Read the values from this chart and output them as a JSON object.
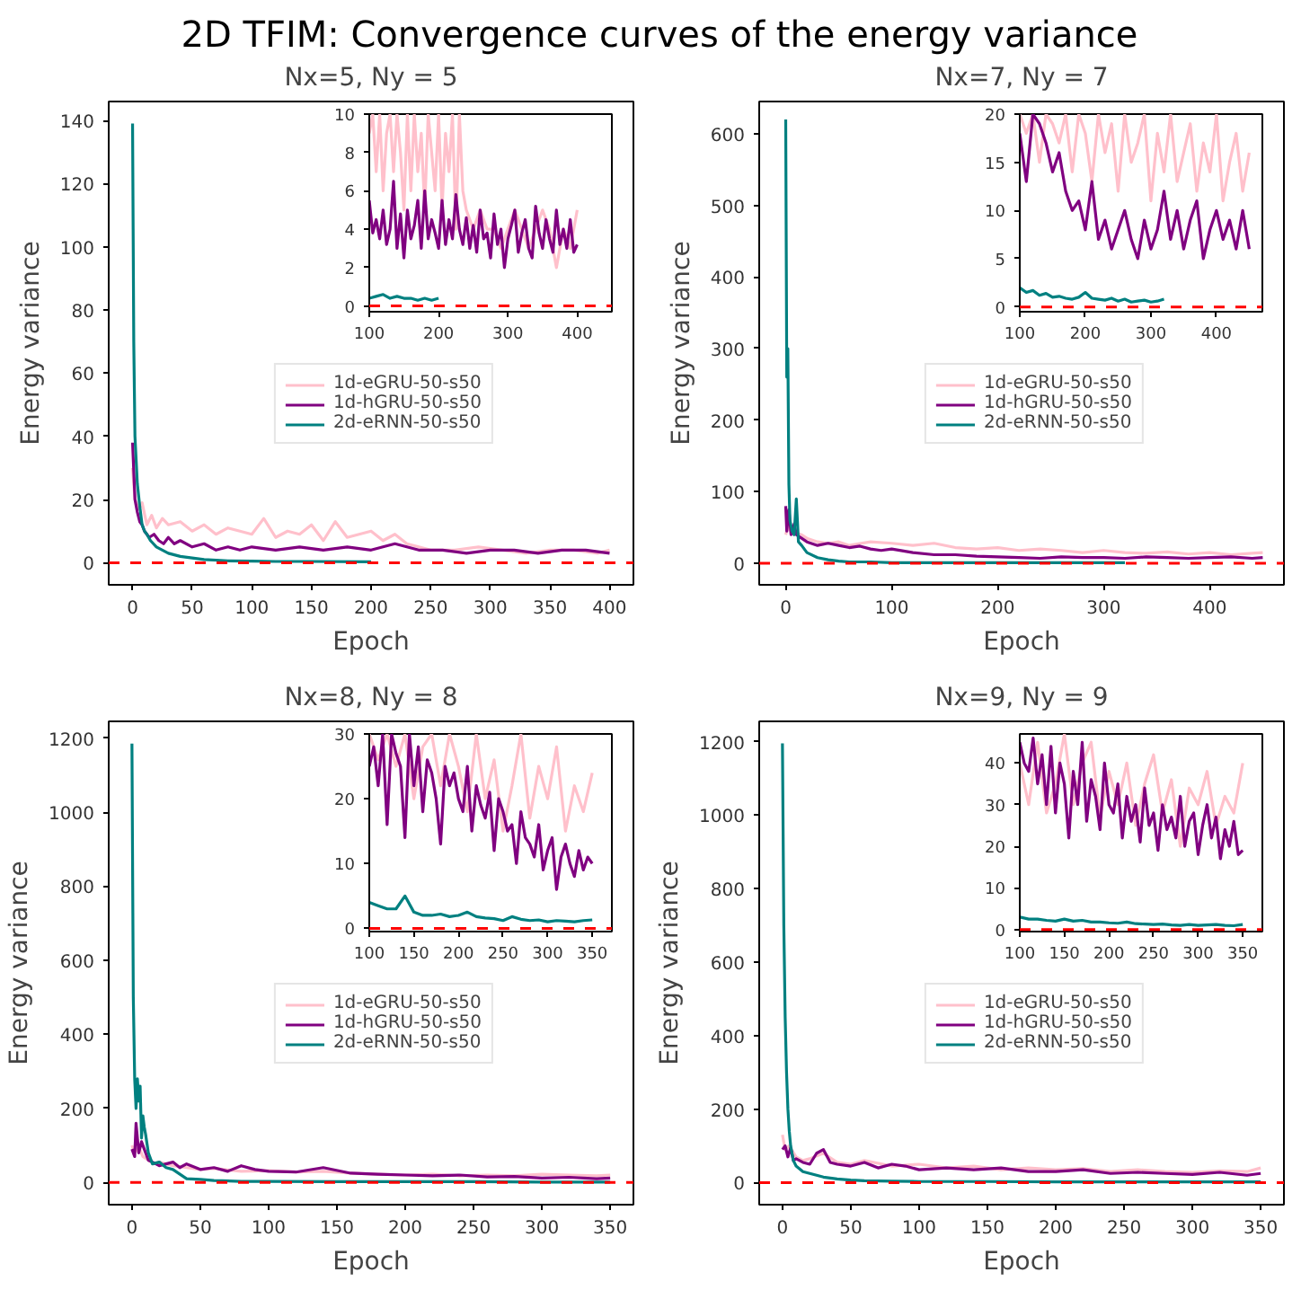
{
  "chart_data": [
    {
      "type": "line",
      "title": "2D TFIM: Convergence curves of the energy variance",
      "subtitle": "Nx=5, Ny = 5",
      "xlabel": "Epoch",
      "ylabel": "Energy variance",
      "xlim": [
        -20,
        420
      ],
      "ylim": [
        -7,
        146
      ],
      "xticks": [
        0,
        50,
        100,
        150,
        200,
        250,
        300,
        350,
        400
      ],
      "yticks": [
        0,
        20,
        40,
        60,
        80,
        100,
        120,
        140
      ],
      "legend": "right",
      "ref_lines": [
        {
          "axis": "y",
          "value": 0,
          "color": "#ff0000",
          "line_style": "dashed"
        }
      ],
      "series": [
        {
          "name": "1d-eGRU-50-s50",
          "color": "#ffc0cb",
          "x": [
            0,
            2,
            5,
            8,
            12,
            16,
            20,
            25,
            30,
            40,
            50,
            60,
            70,
            80,
            90,
            100,
            110,
            120,
            130,
            140,
            150,
            160,
            170,
            180,
            190,
            200,
            210,
            220,
            230,
            240,
            250,
            270,
            290,
            310,
            330,
            350,
            370,
            390,
            400
          ],
          "values": [
            30,
            20,
            17,
            19,
            12,
            15,
            11,
            14,
            12,
            13,
            10,
            12,
            9,
            11,
            10,
            9,
            14,
            8,
            10,
            9,
            12,
            7,
            13,
            8,
            9,
            10,
            7,
            9,
            6,
            5,
            4,
            4,
            5,
            4,
            3,
            4,
            4,
            3,
            4
          ]
        },
        {
          "name": "1d-hGRU-50-s50",
          "color": "#800080",
          "x": [
            0,
            2,
            4,
            6,
            8,
            10,
            14,
            18,
            22,
            26,
            30,
            35,
            40,
            50,
            60,
            70,
            80,
            90,
            100,
            120,
            140,
            160,
            180,
            200,
            220,
            240,
            260,
            280,
            300,
            320,
            340,
            360,
            380,
            400
          ],
          "values": [
            38,
            20,
            16,
            13,
            12,
            10,
            8,
            9,
            7,
            6,
            8,
            6,
            7,
            5,
            6,
            4,
            5,
            4,
            5,
            4,
            5,
            4,
            5,
            4,
            6,
            4,
            4,
            3,
            4,
            4,
            3,
            4,
            4,
            3
          ]
        },
        {
          "name": "2d-eRNN-50-s50",
          "color": "#008080",
          "x": [
            0,
            1,
            2,
            4,
            6,
            8,
            10,
            12,
            15,
            20,
            25,
            30,
            40,
            50,
            60,
            80,
            100,
            120,
            150,
            200
          ],
          "values": [
            139,
            70,
            40,
            25,
            18,
            12,
            10,
            9,
            7,
            5,
            4,
            3,
            2,
            1.5,
            1,
            0.6,
            0.5,
            0.4,
            0.4,
            0.3
          ]
        }
      ]
    },
    {
      "type": "line",
      "xlim": [
        100,
        450
      ],
      "ylim": [
        -0.3,
        10
      ],
      "xticks": [
        100,
        200,
        300,
        400
      ],
      "yticks": [
        0,
        2,
        4,
        6,
        8,
        10
      ],
      "ref_lines": [
        {
          "axis": "y",
          "value": 0,
          "color": "#ff0000",
          "line_style": "dashed"
        }
      ],
      "series": [
        {
          "color": "#ffc0cb",
          "x": [
            100,
            105,
            110,
            115,
            120,
            125,
            130,
            135,
            140,
            145,
            150,
            155,
            160,
            165,
            170,
            175,
            180,
            185,
            190,
            195,
            200,
            205,
            210,
            215,
            220,
            225,
            230,
            235,
            240,
            250,
            260,
            270,
            280,
            290,
            300,
            310,
            320,
            330,
            340,
            350,
            360,
            370,
            380,
            390,
            400
          ],
          "values": [
            9,
            10,
            7,
            10,
            6,
            9,
            10,
            7,
            10,
            8,
            5,
            10,
            6,
            10,
            7,
            9,
            5,
            10,
            8,
            6,
            10,
            5,
            9,
            7,
            10,
            4,
            10,
            6,
            5,
            4,
            5,
            4,
            4,
            3,
            4,
            5,
            4,
            3,
            4,
            5,
            4,
            2,
            4,
            3,
            5
          ]
        },
        {
          "color": "#800080",
          "x": [
            100,
            105,
            110,
            115,
            120,
            125,
            130,
            135,
            140,
            145,
            150,
            155,
            160,
            165,
            170,
            175,
            180,
            185,
            190,
            195,
            200,
            205,
            210,
            215,
            220,
            225,
            230,
            235,
            240,
            245,
            250,
            255,
            260,
            265,
            270,
            275,
            280,
            285,
            290,
            295,
            300,
            305,
            310,
            315,
            320,
            325,
            330,
            335,
            340,
            345,
            350,
            355,
            360,
            365,
            370,
            375,
            380,
            385,
            390,
            395,
            400
          ],
          "values": [
            5.5,
            3.8,
            4.5,
            3.5,
            5,
            3.2,
            4,
            6.5,
            3,
            4.8,
            2.5,
            5,
            3.5,
            4.2,
            5.5,
            3,
            6,
            3.5,
            4.5,
            3.8,
            3,
            5.5,
            3.2,
            4.5,
            3.5,
            5.8,
            4,
            3.2,
            4.6,
            3,
            4.2,
            2.8,
            5,
            3.5,
            3.8,
            2.5,
            4.8,
            3.2,
            4,
            2,
            3.5,
            4.2,
            5,
            2.8,
            3.8,
            4.5,
            3,
            2.5,
            5.2,
            3.8,
            3,
            4.5,
            3.5,
            2.8,
            5,
            3.2,
            4,
            3,
            4.5,
            2.8,
            3.2
          ]
        },
        {
          "color": "#008080",
          "x": [
            100,
            110,
            120,
            130,
            140,
            150,
            160,
            170,
            180,
            190,
            200
          ],
          "values": [
            0.4,
            0.5,
            0.6,
            0.4,
            0.5,
            0.4,
            0.4,
            0.3,
            0.4,
            0.3,
            0.4
          ]
        }
      ]
    },
    {
      "type": "line",
      "title": "Nx=7, Ny = 7",
      "xlabel": "Epoch",
      "ylabel": "Energy variance",
      "xlim": [
        -25,
        470
      ],
      "ylim": [
        -30,
        645
      ],
      "xticks": [
        0,
        100,
        200,
        300,
        400
      ],
      "yticks": [
        0,
        100,
        200,
        300,
        400,
        500,
        600
      ],
      "legend": "right",
      "ref_lines": [
        {
          "axis": "y",
          "value": 0,
          "color": "#ff0000",
          "line_style": "dashed"
        }
      ],
      "series": [
        {
          "name": "1d-eGRU-50-s50",
          "color": "#ffc0cb",
          "x": [
            0,
            2,
            5,
            10,
            15,
            20,
            30,
            40,
            50,
            60,
            80,
            100,
            120,
            140,
            160,
            180,
            200,
            220,
            240,
            260,
            280,
            300,
            320,
            340,
            360,
            380,
            400,
            420,
            440,
            450
          ],
          "values": [
            40,
            50,
            45,
            42,
            40,
            35,
            30,
            28,
            30,
            25,
            30,
            28,
            25,
            28,
            22,
            20,
            22,
            18,
            20,
            18,
            15,
            18,
            15,
            14,
            16,
            13,
            15,
            12,
            14,
            15
          ]
        },
        {
          "name": "1d-hGRU-50-s50",
          "color": "#800080",
          "x": [
            0,
            1,
            3,
            5,
            8,
            10,
            15,
            20,
            30,
            40,
            50,
            60,
            70,
            80,
            90,
            100,
            120,
            140,
            160,
            180,
            200,
            220,
            240,
            260,
            280,
            300,
            320,
            340,
            360,
            380,
            400,
            420,
            440,
            450
          ],
          "values": [
            80,
            45,
            75,
            40,
            55,
            40,
            35,
            30,
            25,
            28,
            25,
            22,
            24,
            20,
            18,
            20,
            15,
            12,
            12,
            10,
            9,
            8,
            7,
            9,
            8,
            8,
            7,
            9,
            8,
            7,
            8,
            9,
            7,
            8
          ]
        },
        {
          "name": "2d-eRNN-50-s50",
          "color": "#008080",
          "x": [
            0,
            1,
            2,
            3,
            4,
            6,
            8,
            10,
            12,
            15,
            20,
            30,
            40,
            50,
            60,
            80,
            100,
            150,
            200,
            250,
            300,
            320
          ],
          "values": [
            620,
            260,
            300,
            110,
            60,
            45,
            40,
            90,
            30,
            25,
            15,
            8,
            5,
            3,
            2,
            2,
            1,
            1,
            1,
            1,
            1,
            1
          ]
        }
      ]
    },
    {
      "type": "line",
      "xlim": [
        100,
        470
      ],
      "ylim": [
        -0.5,
        20
      ],
      "xticks": [
        100,
        200,
        300,
        400
      ],
      "yticks": [
        0,
        5,
        10,
        15,
        20
      ],
      "ref_lines": [
        {
          "axis": "y",
          "value": 0,
          "color": "#ff0000",
          "line_style": "dashed"
        }
      ],
      "series": [
        {
          "color": "#ffc0cb",
          "x": [
            100,
            110,
            120,
            130,
            140,
            150,
            160,
            170,
            180,
            190,
            200,
            210,
            220,
            230,
            240,
            250,
            260,
            270,
            280,
            290,
            300,
            310,
            320,
            330,
            340,
            350,
            360,
            370,
            380,
            390,
            400,
            410,
            420,
            430,
            440,
            450
          ],
          "values": [
            20,
            18,
            20,
            15,
            20,
            19,
            17,
            20,
            14,
            20,
            18,
            13,
            20,
            16,
            19,
            12,
            20,
            15,
            17,
            20,
            11,
            18,
            14,
            20,
            13,
            16,
            19,
            12,
            17,
            14,
            20,
            11,
            15,
            18,
            12,
            16
          ]
        },
        {
          "color": "#800080",
          "x": [
            100,
            110,
            120,
            130,
            140,
            150,
            160,
            170,
            180,
            190,
            200,
            210,
            220,
            230,
            240,
            250,
            260,
            270,
            280,
            290,
            300,
            310,
            320,
            330,
            340,
            350,
            360,
            370,
            380,
            390,
            400,
            410,
            420,
            430,
            440,
            450
          ],
          "values": [
            18,
            13,
            20,
            19,
            17,
            14,
            16,
            12,
            10,
            11,
            8,
            13,
            7,
            9,
            6,
            8,
            10,
            7,
            5,
            9,
            6,
            8,
            12,
            7,
            10,
            6,
            9,
            11,
            5,
            8,
            10,
            7,
            9,
            6,
            10,
            6
          ]
        },
        {
          "color": "#008080",
          "x": [
            100,
            110,
            120,
            130,
            140,
            150,
            160,
            170,
            180,
            190,
            200,
            210,
            220,
            230,
            240,
            250,
            260,
            270,
            280,
            290,
            300,
            310,
            320
          ],
          "values": [
            2,
            1.5,
            1.7,
            1.2,
            1.4,
            1,
            1.1,
            0.9,
            0.8,
            1,
            1.5,
            0.9,
            0.8,
            0.7,
            0.9,
            0.6,
            0.8,
            0.5,
            0.6,
            0.7,
            0.5,
            0.6,
            0.8
          ]
        }
      ]
    },
    {
      "type": "line",
      "title": "Nx=8, Ny = 8",
      "xlabel": "Epoch",
      "ylabel": "Energy variance",
      "xlim": [
        -17,
        367
      ],
      "ylim": [
        -60,
        1245
      ],
      "xticks": [
        0,
        50,
        100,
        150,
        200,
        250,
        300,
        350
      ],
      "yticks": [
        0,
        200,
        400,
        600,
        800,
        1000,
        1200
      ],
      "legend": "right",
      "ref_lines": [
        {
          "axis": "y",
          "value": 0,
          "color": "#ff0000",
          "line_style": "dashed"
        }
      ],
      "series": [
        {
          "name": "1d-eGRU-50-s50",
          "color": "#ffc0cb",
          "x": [
            0,
            2,
            5,
            8,
            12,
            16,
            20,
            30,
            40,
            50,
            60,
            80,
            100,
            120,
            140,
            160,
            180,
            200,
            220,
            240,
            260,
            280,
            300,
            320,
            340,
            350
          ],
          "values": [
            100,
            80,
            95,
            70,
            60,
            50,
            55,
            45,
            40,
            35,
            38,
            30,
            32,
            28,
            30,
            25,
            22,
            20,
            22,
            18,
            20,
            18,
            22,
            20,
            18,
            20
          ]
        },
        {
          "name": "1d-hGRU-50-s50",
          "color": "#800080",
          "x": [
            0,
            2,
            3,
            5,
            7,
            9,
            12,
            15,
            20,
            25,
            30,
            35,
            40,
            50,
            60,
            70,
            80,
            90,
            100,
            120,
            140,
            160,
            180,
            200,
            220,
            240,
            260,
            280,
            300,
            320,
            340,
            350
          ],
          "values": [
            90,
            70,
            160,
            80,
            110,
            90,
            60,
            55,
            45,
            50,
            55,
            40,
            50,
            35,
            40,
            30,
            45,
            35,
            30,
            28,
            40,
            25,
            22,
            20,
            18,
            20,
            15,
            16,
            12,
            14,
            10,
            12
          ]
        },
        {
          "name": "2d-eRNN-50-s50",
          "color": "#008080",
          "x": [
            0,
            1,
            2,
            3,
            4,
            5,
            6,
            7,
            8,
            9,
            10,
            12,
            15,
            20,
            25,
            30,
            40,
            50,
            60,
            80,
            100,
            150,
            200,
            250,
            300,
            350
          ],
          "values": [
            1185,
            500,
            280,
            200,
            280,
            220,
            260,
            120,
            180,
            150,
            130,
            80,
            50,
            55,
            40,
            35,
            10,
            8,
            5,
            3,
            3,
            2,
            2,
            2,
            1,
            1
          ]
        }
      ]
    },
    {
      "type": "line",
      "xlim": [
        100,
        372
      ],
      "ylim": [
        -0.5,
        30
      ],
      "xticks": [
        100,
        150,
        200,
        250,
        300,
        350
      ],
      "yticks": [
        0,
        10,
        20,
        30
      ],
      "ref_lines": [
        {
          "axis": "y",
          "value": 0,
          "color": "#ff0000",
          "line_style": "dashed"
        }
      ],
      "series": [
        {
          "color": "#ffc0cb",
          "x": [
            100,
            110,
            120,
            130,
            140,
            150,
            160,
            170,
            180,
            190,
            200,
            210,
            220,
            230,
            240,
            250,
            260,
            270,
            280,
            290,
            300,
            310,
            320,
            330,
            340,
            350
          ],
          "values": [
            30,
            26,
            30,
            25,
            30,
            20,
            28,
            30,
            22,
            30,
            25,
            18,
            30,
            20,
            26,
            15,
            22,
            30,
            17,
            25,
            20,
            28,
            15,
            22,
            18,
            24
          ]
        },
        {
          "color": "#800080",
          "x": [
            100,
            105,
            110,
            115,
            120,
            125,
            130,
            135,
            140,
            145,
            150,
            155,
            160,
            165,
            170,
            175,
            180,
            185,
            190,
            195,
            200,
            205,
            210,
            215,
            220,
            225,
            230,
            235,
            240,
            245,
            250,
            255,
            260,
            265,
            270,
            275,
            280,
            285,
            290,
            295,
            300,
            305,
            310,
            315,
            320,
            325,
            330,
            335,
            340,
            345,
            350
          ],
          "values": [
            25,
            28,
            22,
            30,
            16,
            30,
            27,
            25,
            14,
            30,
            22,
            28,
            18,
            26,
            24,
            20,
            13,
            25,
            22,
            24,
            20,
            18,
            25,
            15,
            22,
            19,
            17,
            21,
            12,
            20,
            18,
            15,
            16,
            10,
            18,
            14,
            13,
            11,
            16,
            9,
            12,
            14,
            6,
            11,
            13,
            10,
            8,
            12,
            9,
            11,
            10
          ]
        },
        {
          "color": "#008080",
          "x": [
            100,
            110,
            120,
            130,
            140,
            150,
            160,
            170,
            180,
            190,
            200,
            210,
            220,
            230,
            240,
            250,
            260,
            270,
            280,
            290,
            300,
            310,
            320,
            330,
            340,
            350
          ],
          "values": [
            4,
            3.5,
            3,
            3,
            5,
            2.5,
            2,
            2,
            2.2,
            1.8,
            2,
            2.5,
            1.8,
            1.6,
            1.5,
            1.2,
            1.8,
            1.4,
            1.2,
            1.3,
            1,
            1.2,
            1.1,
            1,
            1.2,
            1.3
          ]
        }
      ]
    },
    {
      "type": "line",
      "title": "Nx=9, Ny = 9",
      "xlabel": "Epoch",
      "ylabel": "Energy variance",
      "xlim": [
        -17,
        367
      ],
      "ylim": [
        -60,
        1255
      ],
      "xticks": [
        0,
        50,
        100,
        150,
        200,
        250,
        300,
        350
      ],
      "yticks": [
        0,
        200,
        400,
        600,
        800,
        1000,
        1200
      ],
      "legend": "right",
      "ref_lines": [
        {
          "axis": "y",
          "value": 0,
          "color": "#ff0000",
          "line_style": "dashed"
        }
      ],
      "series": [
        {
          "name": "1d-eGRU-50-s50",
          "color": "#ffc0cb",
          "x": [
            0,
            2,
            5,
            10,
            15,
            20,
            30,
            40,
            50,
            60,
            80,
            100,
            120,
            140,
            160,
            180,
            200,
            220,
            240,
            260,
            280,
            300,
            320,
            340,
            350
          ],
          "values": [
            130,
            90,
            100,
            70,
            60,
            65,
            80,
            55,
            50,
            60,
            45,
            50,
            40,
            45,
            35,
            40,
            35,
            38,
            30,
            35,
            30,
            28,
            32,
            30,
            40
          ]
        },
        {
          "name": "1d-hGRU-50-s50",
          "color": "#800080",
          "x": [
            0,
            2,
            4,
            6,
            8,
            10,
            15,
            20,
            25,
            30,
            35,
            40,
            50,
            60,
            70,
            80,
            90,
            100,
            120,
            140,
            160,
            180,
            200,
            220,
            240,
            260,
            280,
            300,
            320,
            340,
            350
          ],
          "values": [
            90,
            100,
            70,
            95,
            60,
            65,
            55,
            50,
            80,
            90,
            55,
            50,
            45,
            55,
            40,
            50,
            45,
            35,
            40,
            35,
            40,
            30,
            30,
            35,
            25,
            28,
            25,
            22,
            28,
            20,
            25
          ]
        },
        {
          "name": "2d-eRNN-50-s50",
          "color": "#008080",
          "x": [
            0,
            1,
            2,
            3,
            4,
            5,
            6,
            8,
            10,
            15,
            20,
            30,
            40,
            50,
            60,
            80,
            100,
            150,
            200,
            250,
            300,
            350
          ],
          "values": [
            1195,
            700,
            450,
            300,
            200,
            140,
            100,
            60,
            45,
            30,
            25,
            15,
            10,
            7,
            5,
            4,
            3,
            3,
            2,
            2,
            2,
            2
          ]
        }
      ]
    },
    {
      "type": "line",
      "xlim": [
        100,
        372
      ],
      "ylim": [
        -0.5,
        47
      ],
      "xticks": [
        100,
        150,
        200,
        250,
        300,
        350
      ],
      "yticks": [
        0,
        10,
        20,
        30,
        40
      ],
      "ref_lines": [
        {
          "axis": "y",
          "value": 0,
          "color": "#ff0000",
          "line_style": "dashed"
        }
      ],
      "series": [
        {
          "color": "#ffc0cb",
          "x": [
            100,
            110,
            120,
            130,
            140,
            150,
            160,
            170,
            180,
            190,
            200,
            210,
            220,
            230,
            240,
            250,
            260,
            270,
            280,
            290,
            300,
            310,
            320,
            330,
            340,
            350
          ],
          "values": [
            40,
            30,
            45,
            28,
            35,
            47,
            30,
            40,
            45,
            27,
            38,
            30,
            40,
            25,
            35,
            42,
            28,
            36,
            20,
            34,
            30,
            38,
            25,
            32,
            28,
            40
          ]
        },
        {
          "color": "#800080",
          "x": [
            100,
            105,
            110,
            115,
            120,
            125,
            130,
            135,
            140,
            145,
            150,
            155,
            160,
            165,
            170,
            175,
            180,
            185,
            190,
            195,
            200,
            205,
            210,
            215,
            220,
            225,
            230,
            235,
            240,
            245,
            250,
            255,
            260,
            265,
            270,
            275,
            280,
            285,
            290,
            295,
            300,
            305,
            310,
            315,
            320,
            325,
            330,
            335,
            340,
            345,
            350
          ],
          "values": [
            45,
            40,
            38,
            46,
            35,
            42,
            30,
            44,
            28,
            40,
            35,
            22,
            38,
            30,
            45,
            26,
            36,
            32,
            24,
            40,
            30,
            28,
            35,
            22,
            32,
            26,
            30,
            21,
            34,
            25,
            28,
            19,
            30,
            24,
            27,
            22,
            32,
            20,
            26,
            28,
            18,
            25,
            30,
            22,
            27,
            17,
            24,
            20,
            26,
            18,
            19
          ]
        },
        {
          "color": "#008080",
          "x": [
            100,
            110,
            120,
            130,
            140,
            150,
            160,
            170,
            180,
            190,
            200,
            210,
            220,
            230,
            240,
            250,
            260,
            270,
            280,
            290,
            300,
            310,
            320,
            330,
            340,
            350
          ],
          "values": [
            3,
            2.5,
            2.5,
            2.2,
            2,
            2.5,
            2,
            2.2,
            1.8,
            1.8,
            1.6,
            1.5,
            1.8,
            1.4,
            1.3,
            1.2,
            1.3,
            1.1,
            1,
            1.2,
            1,
            1.1,
            1.2,
            1,
            0.9,
            1.2
          ]
        }
      ]
    }
  ]
}
